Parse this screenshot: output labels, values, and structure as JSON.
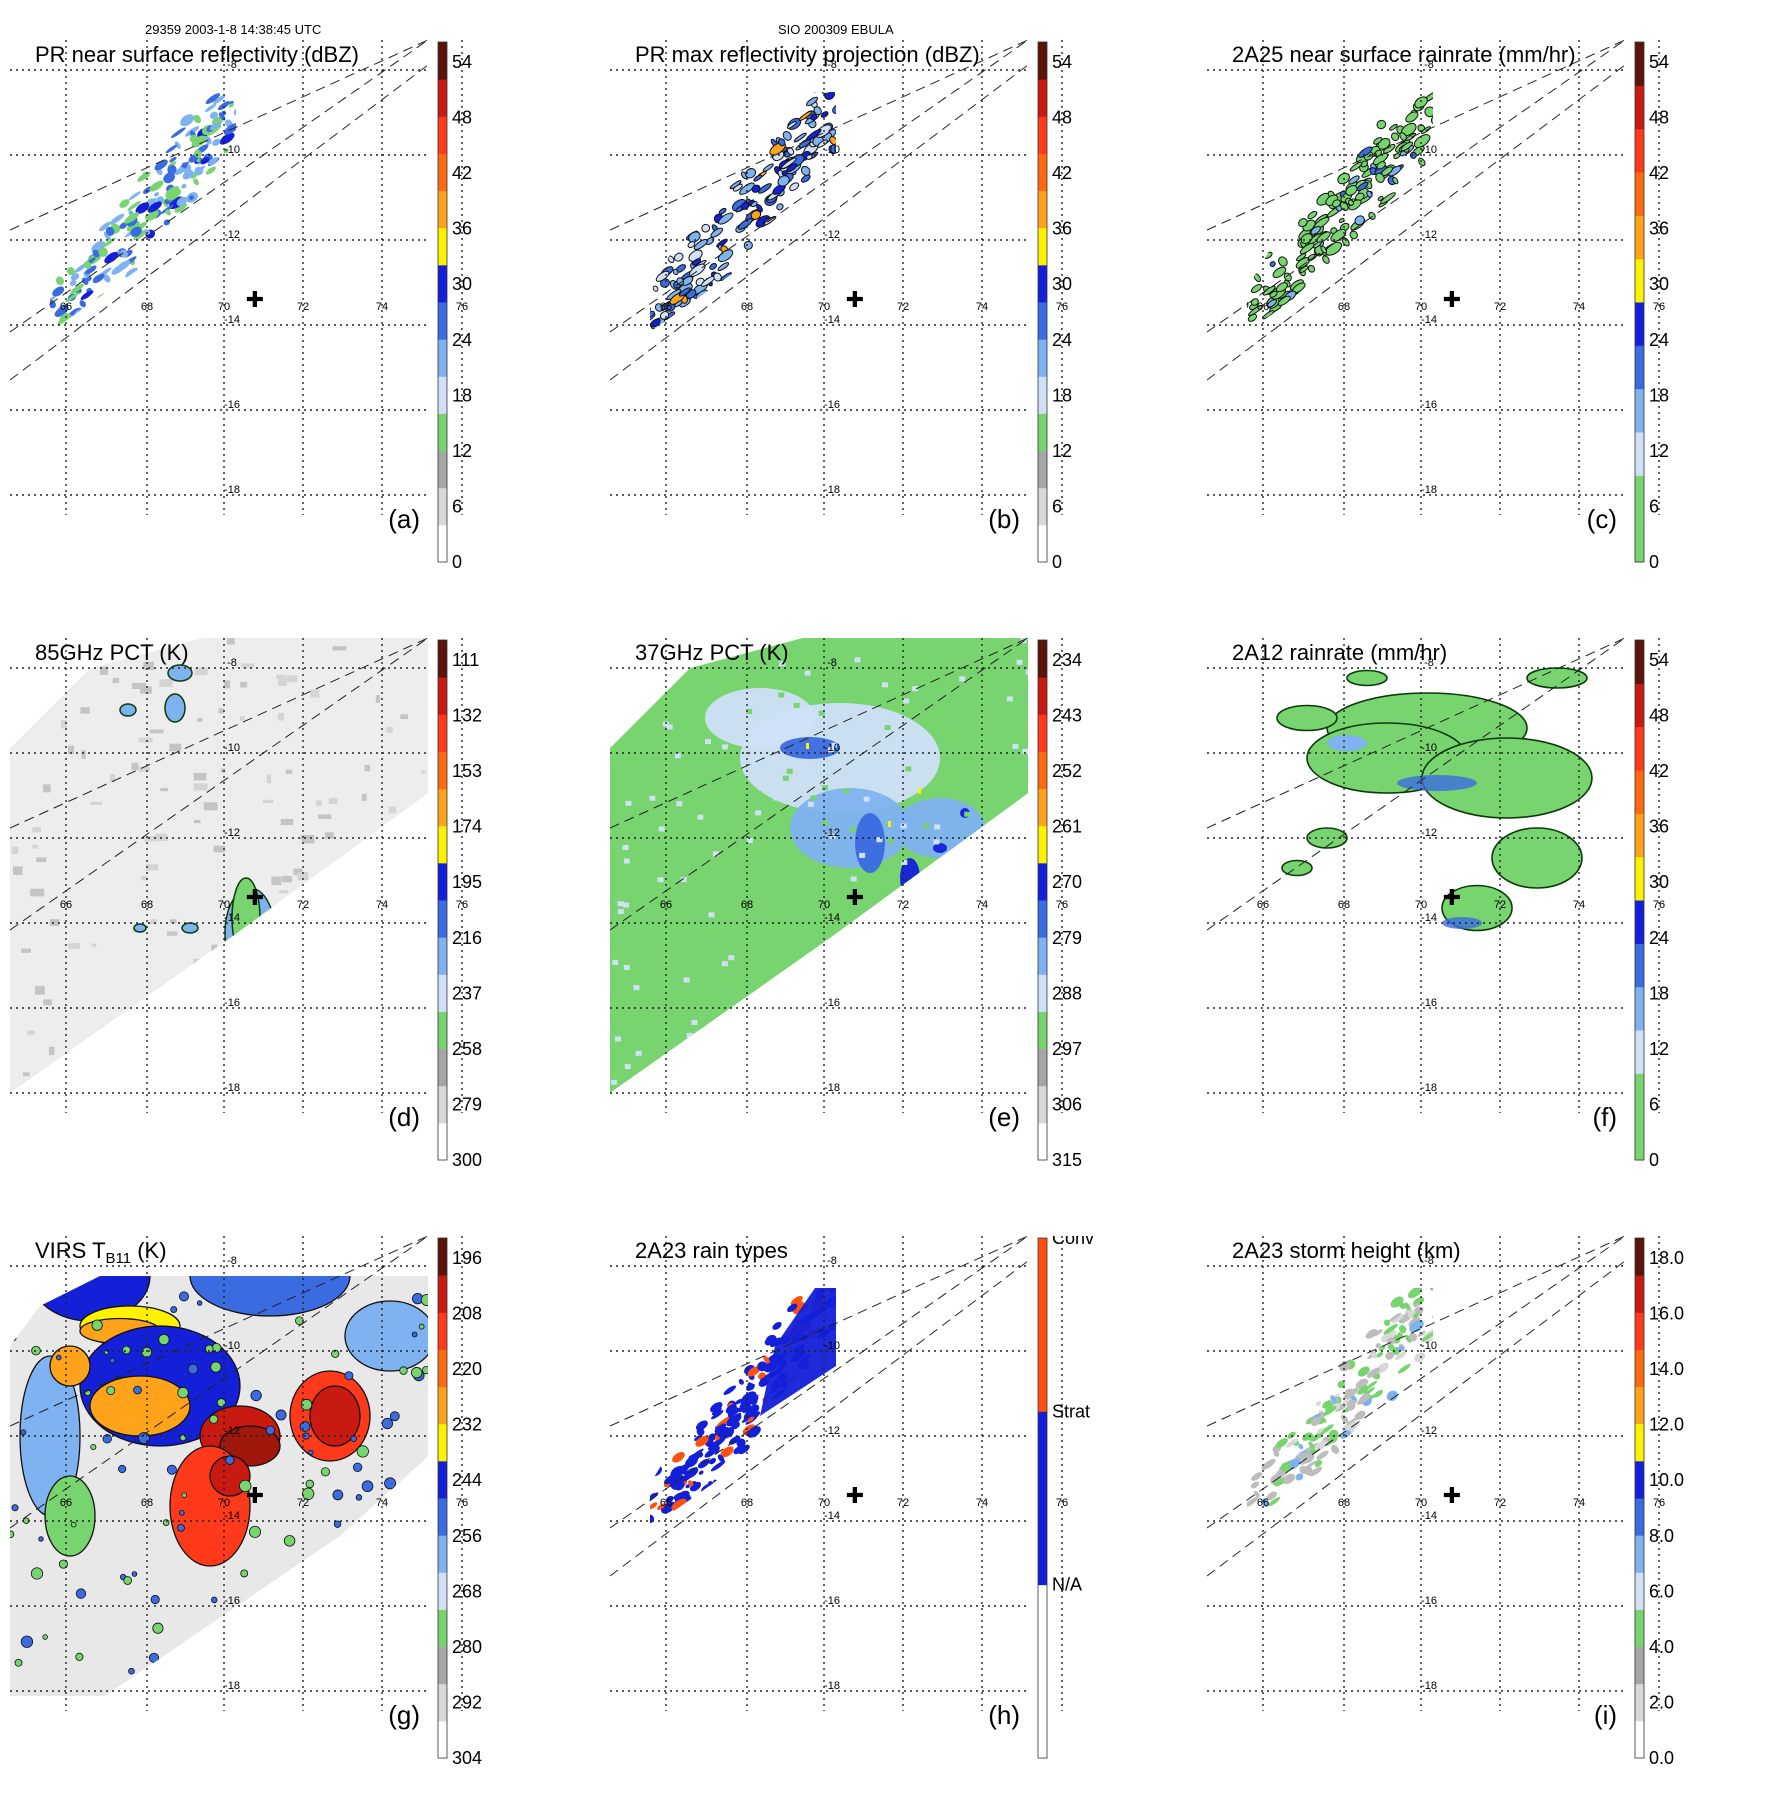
{
  "header": {
    "left": "29359 2003-1-8 14:38:45 UTC",
    "center": "SIO 200309 EBULA"
  },
  "map": {
    "lon_ticks": [
      "66",
      "68",
      "70",
      "72",
      "74",
      "76"
    ],
    "lat_ticks": [
      "-8",
      "-10",
      "-12",
      "-14",
      "-16",
      "-18"
    ],
    "storm_center_symbol": "✚"
  },
  "panels": [
    {
      "id": "a",
      "title": "PR near surface reflectivity (dBZ)",
      "label": "(a)",
      "swath": "pr",
      "field": "pr_refl",
      "cb_colors": [
        "#ffffff",
        "#d9d9d9",
        "#a6a6a6",
        "#77d46e",
        "#cfe0f7",
        "#7fb2f0",
        "#3a6be0",
        "#1320d8",
        "#fff200",
        "#ffa31a",
        "#ff6a10",
        "#ff3a1a",
        "#c81a10",
        "#5a1408"
      ],
      "cb_labels": [
        "0",
        "6",
        "12",
        "18",
        "24",
        "30",
        "36",
        "42",
        "48",
        "54"
      ]
    },
    {
      "id": "b",
      "title": "PR max reflectivity projection (dBZ)",
      "label": "(b)",
      "swath": "pr",
      "field": "pr_max",
      "cb_colors": [
        "#ffffff",
        "#d9d9d9",
        "#a6a6a6",
        "#77d46e",
        "#cfe0f7",
        "#7fb2f0",
        "#3a6be0",
        "#1320d8",
        "#fff200",
        "#ffa31a",
        "#ff6a10",
        "#ff3a1a",
        "#c81a10",
        "#5a1408"
      ],
      "cb_labels": [
        "0",
        "6",
        "12",
        "18",
        "24",
        "30",
        "36",
        "42",
        "48",
        "54"
      ]
    },
    {
      "id": "c",
      "title": "2A25 near surface rainrate (mm/hr)",
      "label": "(c)",
      "swath": "pr",
      "field": "pr_rain",
      "cb_colors": [
        "#77d46e",
        "#77d46e",
        "#cfe0f7",
        "#7fb2f0",
        "#3a6be0",
        "#1320d8",
        "#fff200",
        "#ffa31a",
        "#ff6a10",
        "#ff3a1a",
        "#c81a10",
        "#5a1408"
      ],
      "cb_labels": [
        "0",
        "6",
        "12",
        "18",
        "24",
        "30",
        "36",
        "42",
        "48",
        "54"
      ]
    },
    {
      "id": "d",
      "title": "85GHz PCT (K)",
      "label": "(d)",
      "swath": "tmi",
      "field": "pct85",
      "cb_colors": [
        "#ffffff",
        "#d9d9d9",
        "#a6a6a6",
        "#77d46e",
        "#cfe0f7",
        "#7fb2f0",
        "#3a6be0",
        "#1320d8",
        "#fff200",
        "#ffa31a",
        "#ff6a10",
        "#ff3a1a",
        "#c81a10",
        "#5a1408"
      ],
      "cb_labels": [
        "300",
        "279",
        "258",
        "237",
        "216",
        "195",
        "174",
        "153",
        "132",
        "111"
      ]
    },
    {
      "id": "e",
      "title": "37GHz PCT (K)",
      "label": "(e)",
      "swath": "tmi",
      "field": "pct37",
      "cb_colors": [
        "#ffffff",
        "#d9d9d9",
        "#a6a6a6",
        "#77d46e",
        "#cfe0f7",
        "#7fb2f0",
        "#3a6be0",
        "#1320d8",
        "#fff200",
        "#ffa31a",
        "#ff6a10",
        "#ff3a1a",
        "#c81a10",
        "#5a1408"
      ],
      "cb_labels": [
        "315",
        "306",
        "297",
        "288",
        "279",
        "270",
        "261",
        "252",
        "243",
        "234"
      ]
    },
    {
      "id": "f",
      "title": "2A12 rainrate (mm/hr)",
      "label": "(f)",
      "swath": "tmi",
      "field": "rain12",
      "cb_colors": [
        "#77d46e",
        "#77d46e",
        "#cfe0f7",
        "#7fb2f0",
        "#3a6be0",
        "#1320d8",
        "#fff200",
        "#ffa31a",
        "#ff6a10",
        "#ff3a1a",
        "#c81a10",
        "#5a1408"
      ],
      "cb_labels": [
        "0",
        "6",
        "12",
        "18",
        "24",
        "30",
        "36",
        "42",
        "48",
        "54"
      ]
    },
    {
      "id": "g",
      "title": "VIRS T",
      "title_sub": "B11",
      "title_tail": " (K)",
      "label": "(g)",
      "swath": "virs",
      "field": "virs",
      "cb_colors": [
        "#ffffff",
        "#d9d9d9",
        "#a6a6a6",
        "#77d46e",
        "#cfe0f7",
        "#7fb2f0",
        "#3a6be0",
        "#1320d8",
        "#fff200",
        "#ffa31a",
        "#ff6a10",
        "#ff3a1a",
        "#c81a10",
        "#5a1408"
      ],
      "cb_labels": [
        "304",
        "292",
        "280",
        "268",
        "256",
        "244",
        "232",
        "220",
        "208",
        "196"
      ]
    },
    {
      "id": "h",
      "title": "2A23 rain types",
      "label": "(h)",
      "swath": "pr",
      "field": "rtype",
      "cb_colors": [
        "#ffffff",
        "#1320d8",
        "#ff5010"
      ],
      "cb_labels": [
        "N/A",
        "Strat",
        "Conv"
      ]
    },
    {
      "id": "i",
      "title": "2A23 storm height (km)",
      "label": "(i)",
      "swath": "pr",
      "field": "sheight",
      "cb_colors": [
        "#ffffff",
        "#d9d9d9",
        "#a6a6a6",
        "#77d46e",
        "#cfe0f7",
        "#7fb2f0",
        "#3a6be0",
        "#1320d8",
        "#fff200",
        "#ffa31a",
        "#ff6a10",
        "#ff3a1a",
        "#c81a10",
        "#5a1408"
      ],
      "cb_labels": [
        "0.0",
        "2.0",
        "4.0",
        "6.0",
        "8.0",
        "10.0",
        "12.0",
        "14.0",
        "16.0",
        "18.0"
      ]
    }
  ]
}
